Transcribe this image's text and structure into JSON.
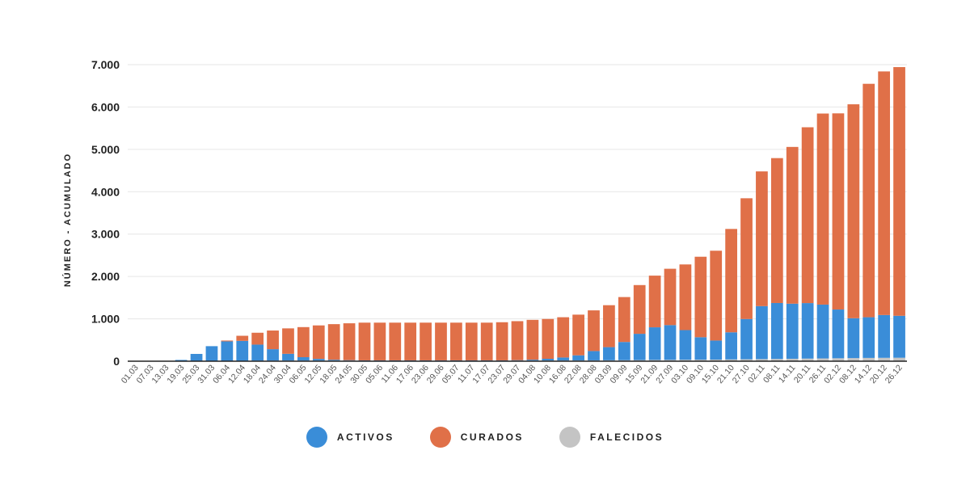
{
  "chart_data": {
    "type": "bar",
    "stacked": true,
    "ylabel": "NÚMERO - ACUMULADO",
    "ylim": [
      0,
      7000
    ],
    "yticks": [
      "0",
      "1.000",
      "2.000",
      "3.000",
      "4.000",
      "5.000",
      "6.000",
      "7.000"
    ],
    "grid": true,
    "legend_position": "bottom-center",
    "x_tick_labels": [
      "01.03",
      "07.03",
      "13.03",
      "19.03",
      "25.03",
      "31.03",
      "06.04",
      "12.04",
      "18.04",
      "24.04",
      "30.04",
      "06.05",
      "12.05",
      "18.05",
      "24.05",
      "30.05",
      "05.06",
      "11.06",
      "17.06",
      "23.06",
      "29.06",
      "05.07",
      "11.07",
      "17.07",
      "23.07",
      "29.07",
      "04.08",
      "10.08",
      "16.08",
      "22.08",
      "28.08",
      "03.09",
      "09.09",
      "15.09",
      "21.09",
      "27.09",
      "03.10",
      "09.10",
      "15.10",
      "21.10",
      "27.10",
      "02.11",
      "08.11",
      "14.11",
      "20.11",
      "26.11",
      "02.12",
      "08.12",
      "14.12",
      "20.12",
      "26.12"
    ],
    "series": [
      {
        "name": "ACTIVOS",
        "color": "#3a8dd8",
        "values": [
          0,
          0,
          2,
          30,
          170,
          350,
          460,
          470,
          380,
          270,
          160,
          80,
          40,
          20,
          10,
          5,
          5,
          5,
          5,
          5,
          5,
          5,
          5,
          5,
          5,
          10,
          20,
          40,
          70,
          120,
          220,
          310,
          430,
          620,
          770,
          820,
          700,
          530,
          450,
          640,
          950,
          1250,
          1320,
          1300,
          1310,
          1270,
          1150,
          940,
          960,
          1010,
          990
        ]
      },
      {
        "name": "CURADOS",
        "color": "#e07048",
        "values": [
          0,
          0,
          0,
          0,
          0,
          0,
          20,
          120,
          280,
          440,
          600,
          710,
          790,
          840,
          870,
          890,
          890,
          890,
          890,
          890,
          890,
          890,
          890,
          890,
          900,
          920,
          940,
          940,
          950,
          960,
          960,
          990,
          1060,
          1150,
          1220,
          1330,
          1550,
          1900,
          2120,
          2440,
          2850,
          3180,
          3420,
          3700,
          4150,
          4510,
          4630,
          5050,
          5510,
          5750,
          5870
        ]
      },
      {
        "name": "FALECIDOS",
        "color": "#c4c4c4",
        "values": [
          0,
          0,
          0,
          0,
          2,
          5,
          8,
          10,
          12,
          14,
          15,
          15,
          15,
          15,
          15,
          15,
          15,
          15,
          15,
          15,
          15,
          15,
          15,
          15,
          15,
          15,
          16,
          17,
          18,
          19,
          20,
          22,
          24,
          27,
          30,
          32,
          34,
          36,
          38,
          42,
          46,
          50,
          54,
          58,
          62,
          66,
          70,
          74,
          78,
          80,
          82
        ]
      }
    ]
  }
}
